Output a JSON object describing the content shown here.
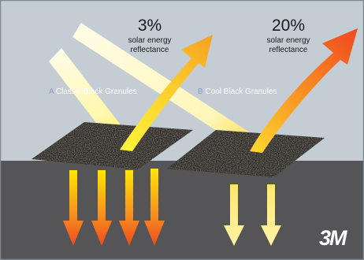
{
  "panel_a": {
    "percentage": "3%",
    "caption_line1": "solar energy",
    "caption_line2": "reflectance",
    "letter": "A",
    "label": "Classic Black Granules"
  },
  "panel_b": {
    "percentage": "20%",
    "caption_line1": "solar energy",
    "caption_line2": "reflectance",
    "letter": "B",
    "label": "Cool Black Granules"
  },
  "logo": "3M",
  "colors": {
    "sky": "#c4ccd4",
    "ground": "#555557",
    "incoming_ray": "#fffbd6",
    "reflect_a_end": "#f6a020",
    "reflect_b_end": "#f04a20",
    "heat_arrow_top": "#ffe600",
    "heat_arrow_bottom": "#ef4b1e",
    "cool_arrow": "#ffed82"
  }
}
